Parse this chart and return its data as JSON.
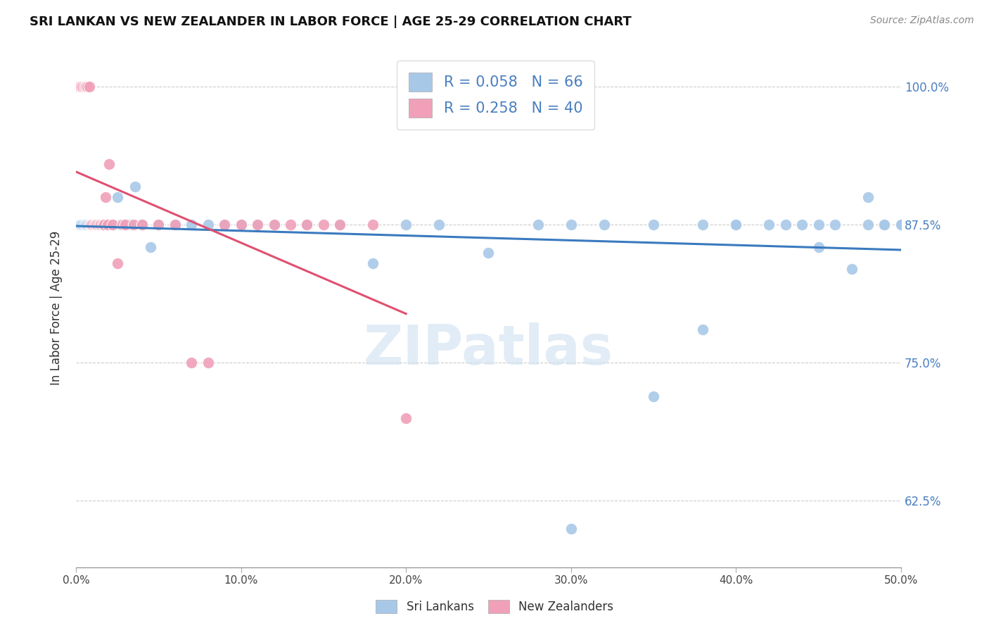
{
  "title": "SRI LANKAN VS NEW ZEALANDER IN LABOR FORCE | AGE 25-29 CORRELATION CHART",
  "source": "Source: ZipAtlas.com",
  "ylabel": "In Labor Force | Age 25-29",
  "ytick_labels": [
    "62.5%",
    "75.0%",
    "87.5%",
    "100.0%"
  ],
  "ytick_values": [
    0.625,
    0.75,
    0.875,
    1.0
  ],
  "xmin": 0.0,
  "xmax": 0.5,
  "ymin": 0.565,
  "ymax": 1.035,
  "legend_blue_r": "R = 0.058",
  "legend_blue_n": "N = 66",
  "legend_pink_r": "R = 0.258",
  "legend_pink_n": "N = 40",
  "blue_color": "#a8c8e8",
  "pink_color": "#f0a0b8",
  "blue_line_color": "#3a7abf",
  "pink_line_color": "#e05070",
  "right_label_color": "#4a7fc0",
  "watermark": "ZIPatlas",
  "blue_scatter_x": [
    0.002,
    0.003,
    0.004,
    0.005,
    0.006,
    0.007,
    0.008,
    0.009,
    0.01,
    0.011,
    0.012,
    0.013,
    0.014,
    0.015,
    0.016,
    0.017,
    0.018,
    0.019,
    0.02,
    0.021,
    0.022,
    0.023,
    0.025,
    0.027,
    0.03,
    0.033,
    0.036,
    0.04,
    0.045,
    0.05,
    0.06,
    0.07,
    0.08,
    0.09,
    0.1,
    0.11,
    0.12,
    0.14,
    0.16,
    0.18,
    0.2,
    0.22,
    0.25,
    0.28,
    0.3,
    0.32,
    0.35,
    0.38,
    0.4,
    0.42,
    0.44,
    0.45,
    0.46,
    0.47,
    0.48,
    0.49,
    0.5,
    0.5,
    0.49,
    0.48,
    0.45,
    0.43,
    0.4,
    0.38,
    0.35,
    0.3
  ],
  "blue_scatter_y": [
    0.875,
    0.875,
    0.875,
    0.875,
    0.875,
    0.875,
    0.875,
    0.875,
    0.875,
    0.875,
    0.875,
    0.875,
    0.875,
    0.875,
    0.875,
    0.875,
    0.875,
    0.875,
    0.875,
    0.875,
    0.875,
    0.875,
    0.9,
    0.875,
    0.875,
    0.875,
    0.91,
    0.875,
    0.855,
    0.875,
    0.875,
    0.875,
    0.875,
    0.875,
    0.875,
    0.875,
    0.875,
    0.875,
    0.875,
    0.84,
    0.875,
    0.875,
    0.85,
    0.875,
    0.875,
    0.875,
    0.875,
    0.875,
    0.875,
    0.875,
    0.875,
    0.855,
    0.875,
    0.835,
    0.875,
    0.875,
    0.875,
    0.875,
    0.875,
    0.9,
    0.875,
    0.875,
    0.875,
    0.78,
    0.72,
    0.6
  ],
  "pink_scatter_x": [
    0.001,
    0.002,
    0.003,
    0.004,
    0.005,
    0.006,
    0.007,
    0.008,
    0.009,
    0.01,
    0.011,
    0.012,
    0.013,
    0.014,
    0.015,
    0.016,
    0.017,
    0.018,
    0.019,
    0.02,
    0.022,
    0.025,
    0.028,
    0.03,
    0.035,
    0.04,
    0.05,
    0.06,
    0.07,
    0.08,
    0.09,
    0.1,
    0.11,
    0.12,
    0.13,
    0.14,
    0.15,
    0.16,
    0.18,
    0.2
  ],
  "pink_scatter_y": [
    1.0,
    1.0,
    1.0,
    1.0,
    1.0,
    1.0,
    1.0,
    1.0,
    0.875,
    0.875,
    0.875,
    0.875,
    0.875,
    0.875,
    0.875,
    0.875,
    0.875,
    0.9,
    0.875,
    0.93,
    0.875,
    0.84,
    0.875,
    0.875,
    0.875,
    0.875,
    0.875,
    0.875,
    0.75,
    0.75,
    0.875,
    0.875,
    0.875,
    0.875,
    0.875,
    0.875,
    0.875,
    0.875,
    0.875,
    0.7
  ]
}
